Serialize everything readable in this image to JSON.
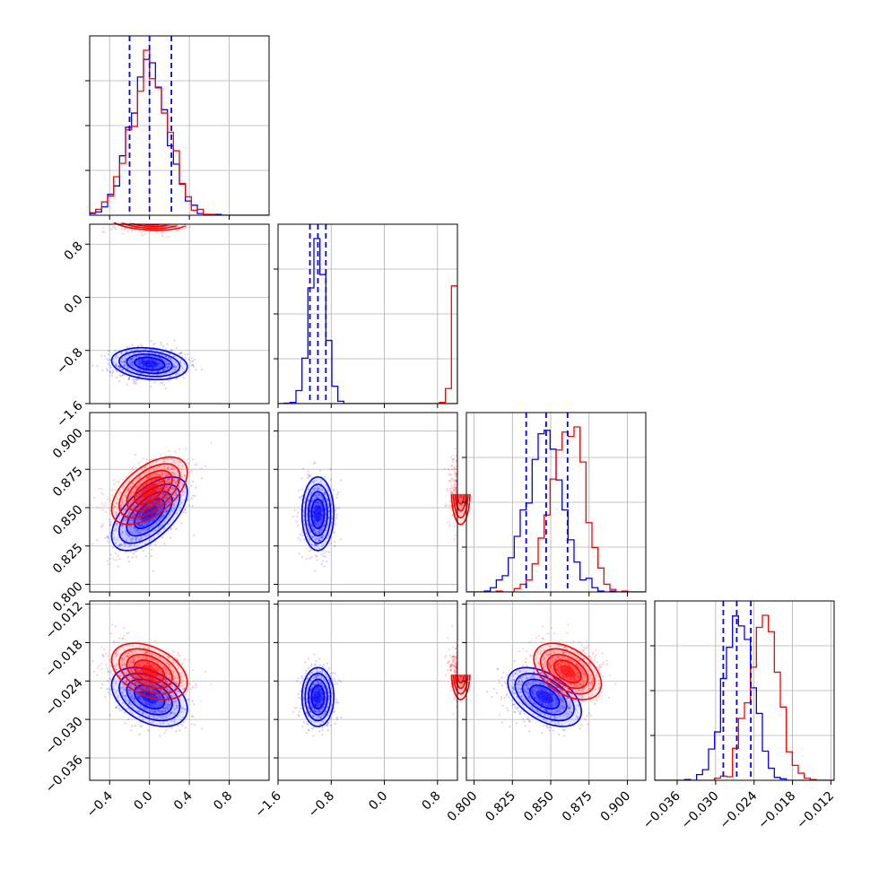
{
  "chart_data": {
    "type": "scatter",
    "subtype": "corner-plot",
    "grid": true,
    "colors": {
      "blue": "#0000ff",
      "red": "#ff0000",
      "grid": "#b0b0b0",
      "axes": "#000000"
    },
    "parameters": [
      {
        "index": 0,
        "xlim": [
          -0.6,
          1.2
        ],
        "ticks": [
          -0.4,
          0.0,
          0.4,
          0.8
        ],
        "tick_labels": [
          "−0.4",
          "0.0",
          "0.4",
          "0.8"
        ]
      },
      {
        "index": 1,
        "xlim": [
          -1.6,
          1.1
        ],
        "ticks": [
          -1.6,
          -0.8,
          0.0,
          0.8
        ],
        "tick_labels": [
          "−1.6",
          "−0.8",
          "0.0",
          "0.8"
        ]
      },
      {
        "index": 2,
        "xlim": [
          0.795,
          0.912
        ],
        "ticks": [
          0.8,
          0.825,
          0.85,
          0.875,
          0.9
        ],
        "tick_labels": [
          "0.800",
          "0.825",
          "0.850",
          "0.875",
          "0.900"
        ]
      },
      {
        "index": 3,
        "xlim": [
          -0.0395,
          -0.0115
        ],
        "ticks": [
          -0.036,
          -0.03,
          -0.024,
          -0.018,
          -0.012
        ],
        "tick_labels": [
          "−0.036",
          "−0.030",
          "−0.024",
          "−0.018",
          "−0.012"
        ]
      }
    ],
    "series": [
      {
        "color": "#0000ff",
        "mean": [
          0.0,
          -1.0,
          0.846,
          -0.0265
        ],
        "std": [
          0.19,
          0.12,
          0.012,
          0.0023
        ],
        "corr": [
          [
            1,
            -0.2,
            0.6,
            -0.4
          ],
          [
            -0.2,
            1,
            0.0,
            0.0
          ],
          [
            0.6,
            0.0,
            1,
            -0.5
          ],
          [
            -0.4,
            0.0,
            -0.5,
            1
          ]
        ],
        "quantiles": [
          [
            -0.2,
            0.0,
            0.22
          ],
          [
            -1.12,
            -1.0,
            -0.88
          ],
          [
            0.834,
            0.847,
            0.861
          ],
          [
            -0.0288,
            -0.0267,
            -0.0245
          ]
        ]
      },
      {
        "color": "#ff0000",
        "mean": [
          0.0,
          1.15,
          0.861,
          -0.0225
        ],
        "std": [
          0.19,
          0.07,
          0.011,
          0.0022
        ],
        "corr": [
          [
            1,
            -0.2,
            0.55,
            -0.4
          ],
          [
            -0.2,
            1,
            0.0,
            0.0
          ],
          [
            0.55,
            0.0,
            1,
            -0.45
          ],
          [
            -0.4,
            0.0,
            -0.45,
            1
          ]
        ]
      }
    ]
  }
}
